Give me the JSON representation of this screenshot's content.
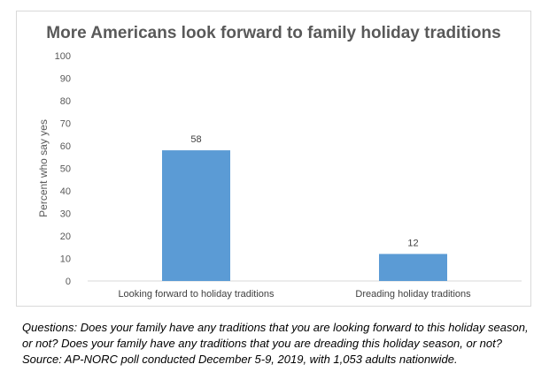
{
  "chart_data": {
    "type": "bar",
    "title": "More Americans look forward to family holiday traditions",
    "ylabel": "Percent who say yes",
    "xlabel": "",
    "categories": [
      "Looking forward to holiday traditions",
      "Dreading holiday traditions"
    ],
    "values": [
      58,
      12
    ],
    "data_labels": [
      "58",
      "12"
    ],
    "ylim": [
      0,
      100
    ],
    "yticks": [
      0,
      10,
      20,
      30,
      40,
      50,
      60,
      70,
      80,
      90,
      100
    ],
    "grid": false,
    "legend": "none",
    "bar_color": "#5b9bd5"
  },
  "caption": {
    "line1": "Questions: Does your family have any traditions that you are looking forward to this holiday season,",
    "line2": "or not? Does your family have any traditions that you are dreading this holiday season, or not?",
    "line3": "Source: AP-NORC poll conducted December 5-9, 2019, with 1,053 adults nationwide."
  }
}
